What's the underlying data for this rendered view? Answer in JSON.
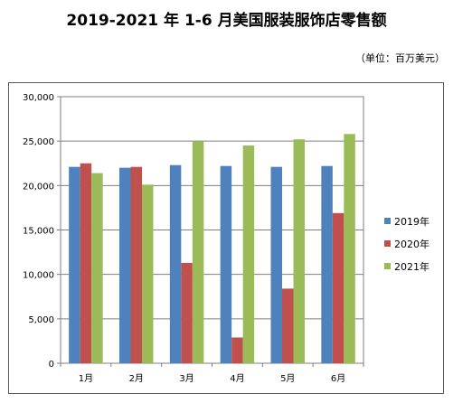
{
  "title": "2019-2021 年 1-6 月美国服装服饰店零售额",
  "unit_note": "（单位：百万美元）",
  "colors": {
    "s2019": "#4F81BD",
    "s2020": "#C0504D",
    "s2021": "#9BBB59",
    "grid": "#7f7f7f"
  },
  "chart_data": {
    "type": "bar",
    "categories": [
      "1月",
      "2月",
      "3月",
      "4月",
      "5月",
      "6月"
    ],
    "series": [
      {
        "name": "2019年",
        "values": [
          22100,
          22000,
          22300,
          22200,
          22100,
          22200
        ]
      },
      {
        "name": "2020年",
        "values": [
          22500,
          22100,
          11300,
          2900,
          8400,
          16900
        ]
      },
      {
        "name": "2021年",
        "values": [
          21400,
          20100,
          25000,
          24500,
          25200,
          25800
        ]
      }
    ],
    "ylim": [
      0,
      30000
    ],
    "yticks": [
      "0",
      "5,000",
      "10,000",
      "15,000",
      "20,000",
      "25,000",
      "30,000"
    ],
    "grid": true,
    "legend": "right"
  }
}
